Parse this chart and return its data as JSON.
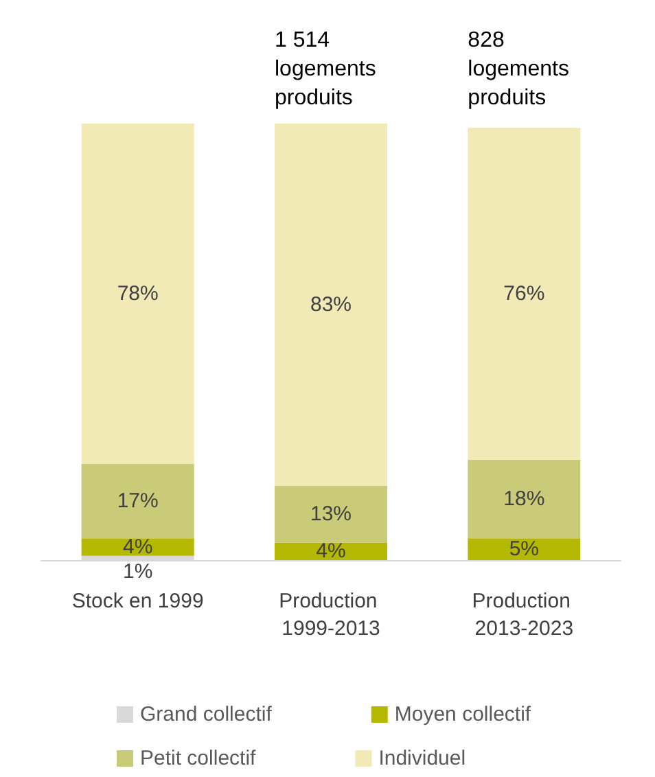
{
  "chart_data": {
    "type": "bar",
    "stacked": true,
    "legend": "bottom",
    "categories": [
      "Stock en 1999",
      "Production 1999-2013",
      "Production 2013-2023"
    ],
    "series": [
      {
        "name": "Grand collectif",
        "color": "#d9d9d9",
        "values": [
          1,
          null,
          null
        ],
        "value_labels": [
          "1%",
          null,
          null
        ]
      },
      {
        "name": "Moyen collectif",
        "color": "#b5b800",
        "values": [
          4,
          4,
          5
        ],
        "value_labels": [
          "4%",
          "4%",
          "5%"
        ]
      },
      {
        "name": "Petit collectif",
        "color": "#c9cb78",
        "values": [
          17,
          13,
          18
        ],
        "value_labels": [
          "17%",
          "13%",
          "18%"
        ]
      },
      {
        "name": "Individuel",
        "color": "#f1eab6",
        "values": [
          78,
          83,
          76
        ],
        "value_labels": [
          "78%",
          "83%",
          "76%"
        ]
      }
    ],
    "annotations": [
      {
        "text": "1 514 logements produits",
        "x": "Production 1999-2013",
        "y": 100
      },
      {
        "text": "828 logements produits",
        "x": "Production 2013-2023",
        "y": 100
      }
    ]
  }
}
